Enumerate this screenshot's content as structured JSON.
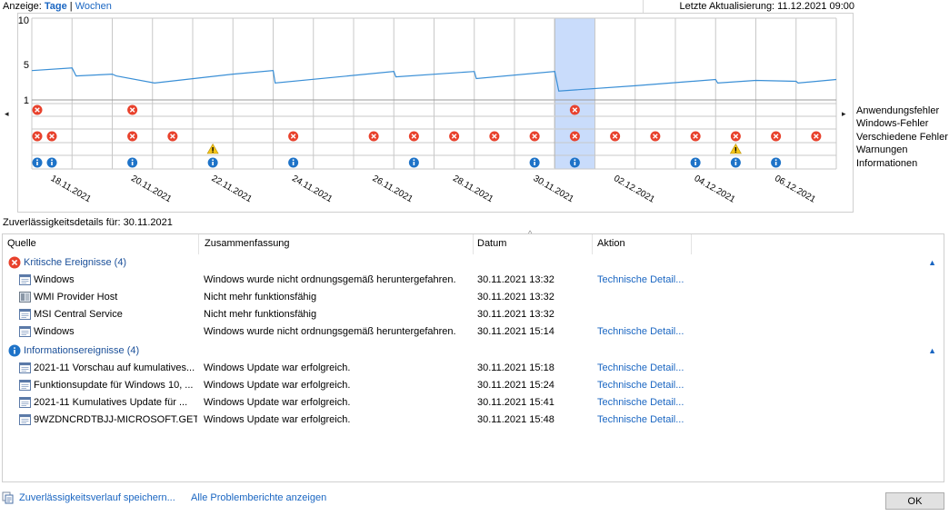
{
  "topbar": {
    "view_label": "Anzeige:",
    "days": "Tage",
    "separator": "|",
    "weeks": "Wochen",
    "last_update": "Letzte Aktualisierung: 11.12.2021 09:00"
  },
  "chart": {
    "y_ticks": [
      "10",
      "5",
      "1"
    ],
    "x_labels": [
      "18.11.2021",
      "20.11.2021",
      "22.11.2021",
      "24.11.2021",
      "26.11.2021",
      "28.11.2021",
      "30.11.2021",
      "02.12.2021",
      "04.12.2021",
      "06.12.2021"
    ],
    "legend": [
      "Anwendungsfehler",
      "Windows-Fehler",
      "Verschiedene Fehler",
      "Warnungen",
      "Informationen"
    ],
    "nav_left": "◂",
    "nav_right": "▸"
  },
  "chart_data": {
    "type": "line",
    "ylim": [
      1,
      10
    ],
    "selected_day": 13,
    "days": 20,
    "stability_segments": [
      [
        [
          0,
          4.3
        ],
        [
          1,
          4.6
        ],
        [
          1.1,
          3.7
        ],
        [
          2,
          3.9
        ],
        [
          2.1,
          3.7
        ],
        [
          3.05,
          2.9
        ],
        [
          5,
          3.9
        ],
        [
          6,
          4.3
        ],
        [
          6.05,
          2.9
        ],
        [
          9,
          4.2
        ],
        [
          9.05,
          3.6
        ],
        [
          11,
          4.2
        ],
        [
          11.05,
          3.4
        ],
        [
          13,
          4.2
        ],
        [
          13.1,
          2.0
        ],
        [
          15,
          2.6
        ],
        [
          17,
          3.3
        ],
        [
          17.05,
          2.9
        ],
        [
          18,
          3.2
        ],
        [
          19,
          3.1
        ],
        [
          19.05,
          2.9
        ],
        [
          20,
          3.3
        ]
      ]
    ],
    "events": {
      "application_errors": [
        0,
        2,
        13
      ],
      "windows_errors": [],
      "misc_errors": [
        0,
        0.4,
        2,
        3,
        6,
        8,
        9,
        10,
        11,
        12,
        13,
        14,
        15,
        16,
        17,
        18,
        19
      ],
      "warnings": [
        4,
        17
      ],
      "information": [
        0,
        0.4,
        2,
        4,
        6,
        9,
        12,
        13,
        16,
        17,
        18
      ]
    }
  },
  "details": {
    "title": "Zuverlässigkeitsdetails für: 30.11.2021",
    "columns": {
      "source": "Quelle",
      "summary": "Zusammenfassung",
      "date": "Datum",
      "action": "Aktion"
    },
    "sort_caret": "^",
    "critical_group": "Kritische Ereignisse (4)",
    "info_group": "Informationsereignisse (4)",
    "collapse_glyph": "▲",
    "critical_rows": [
      {
        "source": "Windows",
        "summary": "Windows wurde nicht ordnungsgemäß heruntergefahren.",
        "date": "30.11.2021 13:32",
        "action": "Technische Detail..."
      },
      {
        "source": "WMI Provider Host",
        "summary": "Nicht mehr funktionsfähig",
        "date": "30.11.2021 13:32",
        "action": ""
      },
      {
        "source": "MSI Central Service",
        "summary": "Nicht mehr funktionsfähig",
        "date": "30.11.2021 13:32",
        "action": ""
      },
      {
        "source": "Windows",
        "summary": "Windows wurde nicht ordnungsgemäß heruntergefahren.",
        "date": "30.11.2021 15:14",
        "action": "Technische Detail..."
      }
    ],
    "info_rows": [
      {
        "source": "2021-11 Vorschau auf kumulatives...",
        "summary": "Windows Update war erfolgreich.",
        "date": "30.11.2021 15:18",
        "action": "Technische Detail..."
      },
      {
        "source": "Funktionsupdate für Windows 10, ...",
        "summary": "Windows Update war erfolgreich.",
        "date": "30.11.2021 15:24",
        "action": "Technische Detail..."
      },
      {
        "source": "2021-11 Kumulatives Update für ...",
        "summary": "Windows Update war erfolgreich.",
        "date": "30.11.2021 15:41",
        "action": "Technische Detail..."
      },
      {
        "source": "9WZDNCRDTBJJ-MICROSOFT.GET...",
        "summary": "Windows Update war erfolgreich.",
        "date": "30.11.2021 15:48",
        "action": "Technische Detail..."
      }
    ]
  },
  "footer": {
    "save": "Zuverlässigkeitsverlauf speichern...",
    "all_reports": "Alle Problemberichte anzeigen",
    "ok": "OK"
  },
  "colors": {
    "link": "#1a66c2",
    "line": "#3a8fd6",
    "selection": "#c9dcfb",
    "error": "#e8412c",
    "info": "#1e73c8",
    "warning": "#f5c518"
  }
}
